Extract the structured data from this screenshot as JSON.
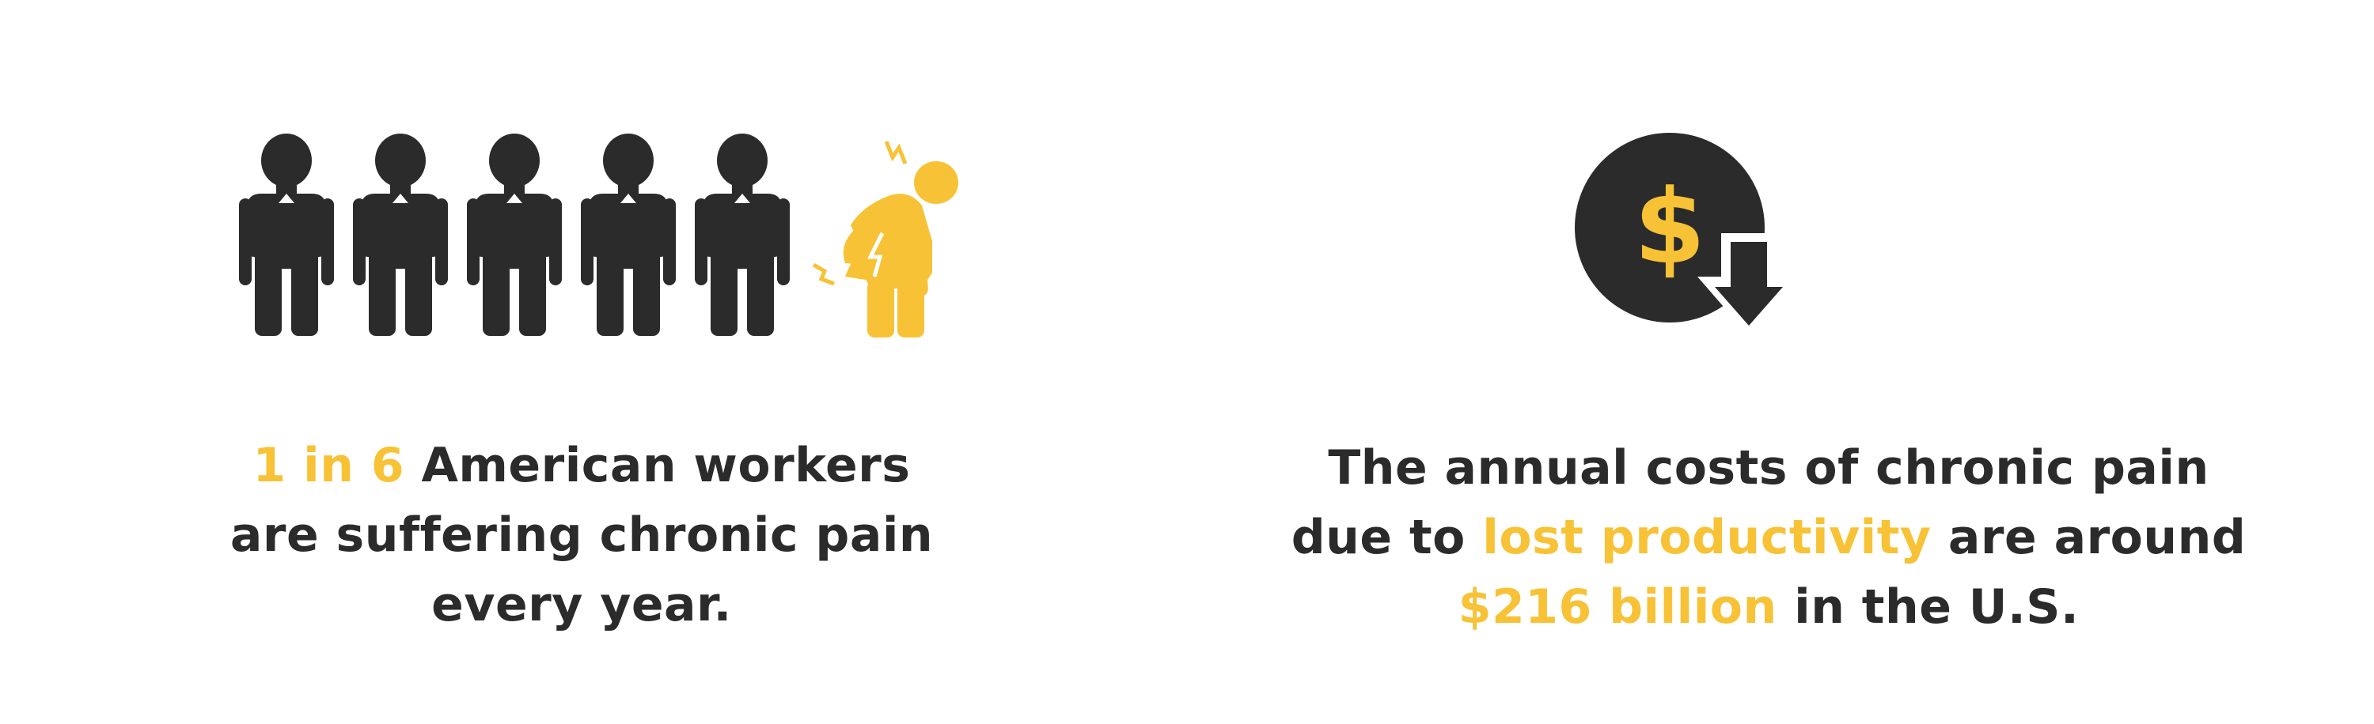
{
  "colors": {
    "dark": "#2b2b2b",
    "accent": "#f7c235",
    "background": "#ffffff"
  },
  "left_panel": {
    "icon": "five-dark-people-one-yellow-person-in-pain-icon",
    "figures_total": 6,
    "figures_highlighted": 1,
    "text": {
      "line1_highlight": "1 in 6",
      "line1_rest": " American workers",
      "line2": "are suffering chronic pain",
      "line3": "every year."
    }
  },
  "right_panel": {
    "icon": "dollar-coin-down-arrow-icon",
    "coin_symbol": "$",
    "text": {
      "line1": "The annual costs of chronic pain",
      "line2_pre": "due to ",
      "line2_highlight": "lost productivity",
      "line2_post": " are around",
      "line3_highlight": "$216 billion",
      "line3_post": " in the U.S."
    }
  }
}
